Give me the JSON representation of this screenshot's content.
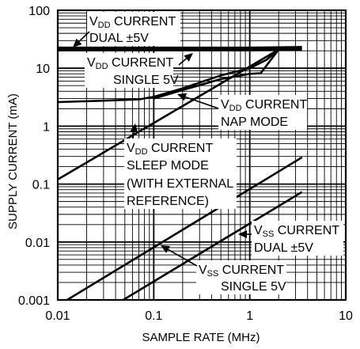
{
  "chart_data": {
    "type": "line",
    "title": "",
    "xlabel": "SAMPLE RATE (MHz)",
    "ylabel": "SUPPLY CURRENT (mA)",
    "x_scale": "log",
    "y_scale": "log",
    "xlim": [
      0.01,
      10
    ],
    "ylim": [
      0.001,
      100
    ],
    "grid": true,
    "x_ticks": [
      {
        "value": 0.01,
        "label": "0.01"
      },
      {
        "value": 0.1,
        "label": "0.1"
      },
      {
        "value": 1,
        "label": "1"
      },
      {
        "value": 10,
        "label": "10"
      }
    ],
    "y_ticks": [
      {
        "value": 0.001,
        "label": "0.001"
      },
      {
        "value": 0.01,
        "label": "0.01"
      },
      {
        "value": 0.1,
        "label": "0.1"
      },
      {
        "value": 1,
        "label": "1"
      },
      {
        "value": 10,
        "label": "10"
      },
      {
        "value": 100,
        "label": "100"
      }
    ],
    "series": [
      {
        "id": "vdd-dual",
        "line_weight": "heavy",
        "label_main": "V",
        "label_sub": "DD",
        "label_rest": " CURRENT",
        "label_line2": "DUAL ±5V",
        "points": [
          [
            0.01,
            21.5
          ],
          [
            0.1,
            21.5
          ],
          [
            1,
            21.5
          ],
          [
            3.5,
            22.0
          ]
        ]
      },
      {
        "id": "vdd-single",
        "line_weight": "normal",
        "label_main": "V",
        "label_sub": "DD",
        "label_rest": " CURRENT",
        "label_line2": "SINGLE 5V",
        "points": [
          [
            0.01,
            2.6
          ],
          [
            0.03,
            2.75
          ],
          [
            0.07,
            2.9
          ],
          [
            0.1,
            3.2
          ],
          [
            0.2,
            4.5
          ],
          [
            0.5,
            7.5
          ],
          [
            1.0,
            10.0
          ],
          [
            1.5,
            14.0
          ],
          [
            2.0,
            21.0
          ]
        ]
      },
      {
        "id": "vdd-nap",
        "line_weight": "normal",
        "label_main": "V",
        "label_sub": "DD",
        "label_rest": " CURRENT",
        "label_line2": "NAP MODE",
        "points": [
          [
            0.1,
            3.0
          ],
          [
            0.2,
            4.2
          ],
          [
            0.5,
            6.5
          ],
          [
            1.0,
            8.0
          ],
          [
            1.3,
            8.2
          ],
          [
            2.0,
            21.0
          ]
        ]
      },
      {
        "id": "vdd-sleep",
        "line_weight": "normal",
        "label_main": "V",
        "label_sub": "DD",
        "label_rest": " CURRENT",
        "label_line2": "SLEEP MODE",
        "label_line3": "(WITH EXTERNAL",
        "label_line4": "REFERENCE)",
        "points": [
          [
            0.01,
            0.12
          ],
          [
            2.0,
            21.0
          ]
        ]
      },
      {
        "id": "vss-dual",
        "line_weight": "normal",
        "label_main": "V",
        "label_sub": "SS",
        "label_rest": " CURRENT",
        "label_line2": "DUAL ±5V",
        "points": [
          [
            0.0125,
            0.001
          ],
          [
            3.5,
            0.29
          ]
        ]
      },
      {
        "id": "vss-single",
        "line_weight": "normal",
        "label_main": "V",
        "label_sub": "SS",
        "label_rest": " CURRENT",
        "label_line2": "SINGLE 5V",
        "points": [
          [
            0.048,
            0.001
          ],
          [
            3.5,
            0.073
          ]
        ]
      }
    ]
  }
}
